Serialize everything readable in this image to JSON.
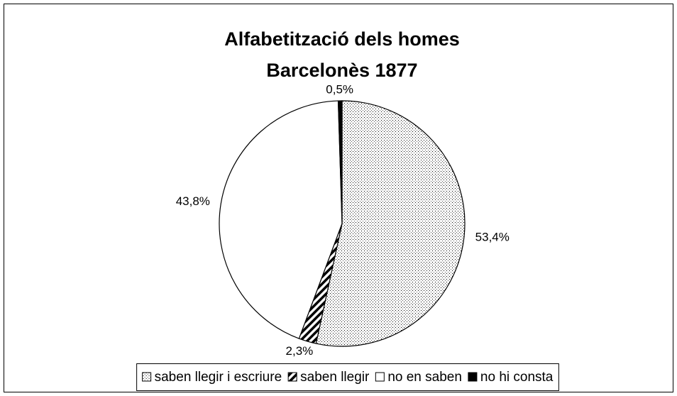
{
  "chart_data": {
    "type": "pie",
    "title": "Alfabetització dels homes",
    "subtitle": "Barcelonès 1877",
    "categories": [
      "saben llegir i escriure",
      "saben llegir",
      "no en saben",
      "no hi consta"
    ],
    "values": [
      53.4,
      2.3,
      43.8,
      0.5
    ],
    "value_labels": [
      "53,4%",
      "2,3%",
      "43,8%",
      "0,5%"
    ],
    "colors": [
      "#ffffff",
      "#ffffff",
      "#ffffff",
      "#000000"
    ],
    "patterns": [
      "dots",
      "hatch",
      "none",
      "none"
    ],
    "legend": "bottom"
  }
}
